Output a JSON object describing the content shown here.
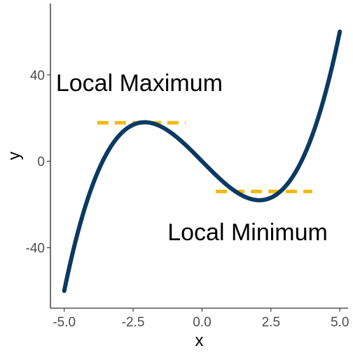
{
  "chart_data": {
    "type": "line",
    "title": "",
    "xlabel": "x",
    "ylabel": "y",
    "xlim": [
      -5.5,
      5.3
    ],
    "ylim": [
      -68,
      73
    ],
    "x_ticks": [
      -5.0,
      -2.5,
      0.0,
      2.5,
      5.0
    ],
    "x_tick_labels": [
      "-5.0",
      "-2.5",
      "0.0",
      "2.5",
      "5.0"
    ],
    "y_ticks": [
      -40,
      0,
      40
    ],
    "y_tick_labels": [
      "-40",
      "0",
      "40"
    ],
    "grid": false,
    "legend": "none",
    "series": [
      {
        "function": "x^3 - 13x",
        "x_range": [
          -5,
          5
        ],
        "samples": 101,
        "color": "#0a3a64"
      }
    ],
    "reference_lines": [
      {
        "y": 17.8,
        "x_start": -3.8,
        "x_end": -0.6,
        "style": "dashed",
        "color": "#f2b90f"
      },
      {
        "y": -14.0,
        "x_start": 0.5,
        "x_end": 4.0,
        "style": "dashed",
        "color": "#f2b90f"
      }
    ],
    "annotations": [
      {
        "text": "Local Maximum",
        "x": -5.3,
        "y": 32.5
      },
      {
        "text": "Local Minimum",
        "x": -1.25,
        "y": -36.5
      }
    ]
  }
}
